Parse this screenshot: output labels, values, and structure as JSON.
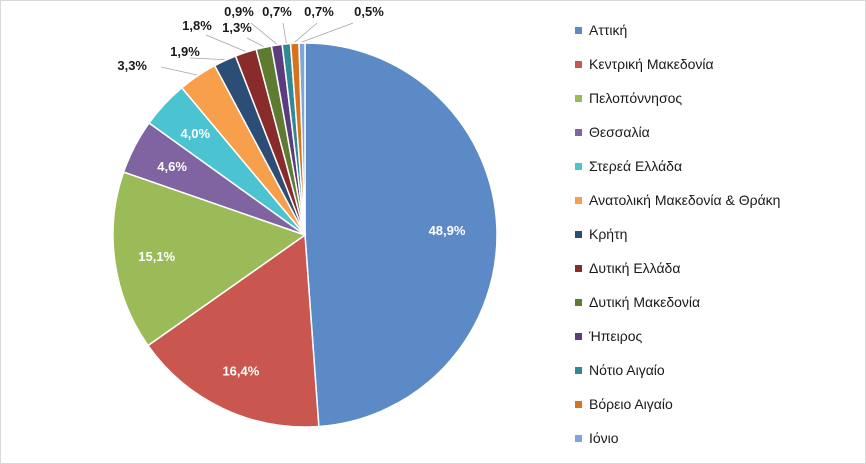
{
  "chart_data": {
    "type": "pie",
    "title": "",
    "start_angle_deg": 0,
    "direction": "clockwise",
    "legend_position": "right",
    "slices": [
      {
        "name": "Αττική",
        "value": 48.9,
        "label": "48,9%",
        "color": "#5b8ac6",
        "label_color": "#ffffff",
        "label_placement": "inside"
      },
      {
        "name": "Κεντρική Μακεδονία",
        "value": 16.4,
        "label": "16,4%",
        "color": "#c9564f",
        "label_color": "#ffffff",
        "label_placement": "inside"
      },
      {
        "name": "Πελοπόννησος",
        "value": 15.1,
        "label": "15,1%",
        "color": "#9bbb59",
        "label_color": "#ffffff",
        "label_placement": "inside"
      },
      {
        "name": "Θεσσαλία",
        "value": 4.6,
        "label": "4,6%",
        "color": "#8064a2",
        "label_color": "#ffffff",
        "label_placement": "inside"
      },
      {
        "name": "Στερεά Ελλάδα",
        "value": 4.0,
        "label": "4,0%",
        "color": "#4bc3d0",
        "label_color": "#ffffff",
        "label_placement": "inside"
      },
      {
        "name": "Ανατολική Μακεδονία & Θράκη",
        "value": 3.3,
        "label": "3,3%",
        "color": "#f79f4a",
        "label_color": "#1a1a1a",
        "label_placement": "outside"
      },
      {
        "name": "Κρήτη",
        "value": 1.9,
        "label": "1,9%",
        "color": "#2c4d75",
        "label_color": "#1a1a1a",
        "label_placement": "outside"
      },
      {
        "name": "Δυτική Ελλάδα",
        "value": 1.8,
        "label": "1,8%",
        "color": "#8a2b2b",
        "label_color": "#1a1a1a",
        "label_placement": "outside"
      },
      {
        "name": "Δυτική Μακεδονία",
        "value": 1.3,
        "label": "1,3%",
        "color": "#5f7a31",
        "label_color": "#1a1a1a",
        "label_placement": "outside"
      },
      {
        "name": "Ήπειρος",
        "value": 0.9,
        "label": "0,9%",
        "color": "#5b3d7f",
        "label_color": "#1a1a1a",
        "label_placement": "outside"
      },
      {
        "name": "Νότιο Αιγαίο",
        "value": 0.7,
        "label": "0,7%",
        "color": "#2f8a96",
        "label_color": "#1a1a1a",
        "label_placement": "outside"
      },
      {
        "name": "Βόρειο Αιγαίο",
        "value": 0.7,
        "label": "0,7%",
        "color": "#d8731c",
        "label_color": "#1a1a1a",
        "label_placement": "outside"
      },
      {
        "name": "Ιόνιο",
        "value": 0.5,
        "label": "0,5%",
        "color": "#7fa6d9",
        "label_color": "#1a1a1a",
        "label_placement": "outside"
      }
    ]
  }
}
